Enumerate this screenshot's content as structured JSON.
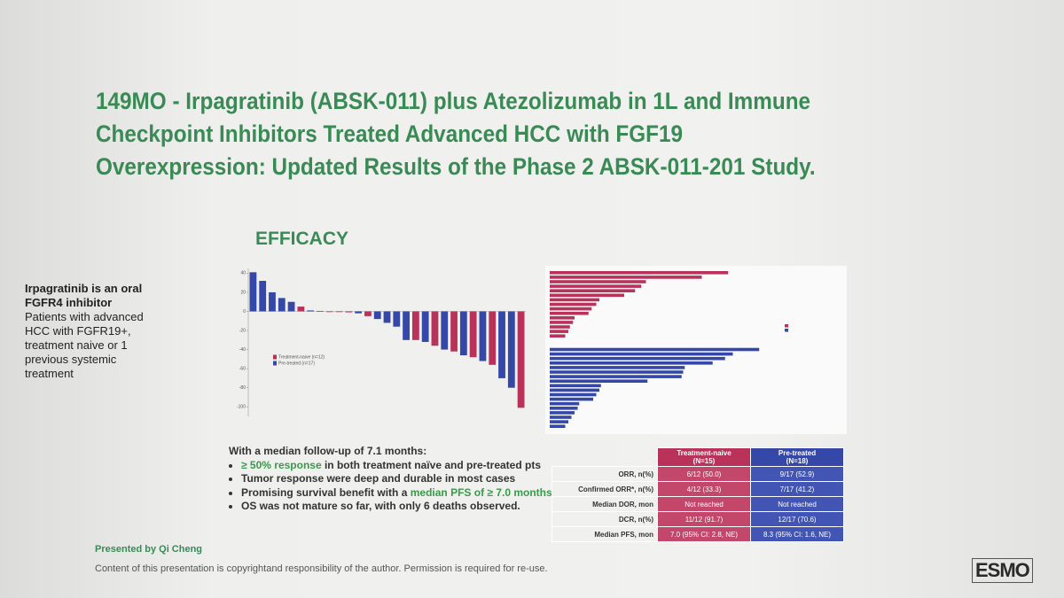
{
  "slide": {
    "title": "149MO - Irpagratinib (ABSK-011) plus Atezolizumab in 1L and Immune Checkpoint Inhibitors Treated Advanced HCC with FGF19 Overexpression: Updated Results of the Phase 2 ABSK-011-201 Study.",
    "section": "EFFICACY",
    "intro": {
      "heading": "Irpagratinib is an oral FGFR4 inhibitor",
      "text": "Patients with advanced HCC with FGFR19+, treatment naive or 1 previous systemic treatment"
    },
    "summary": {
      "lead": "With a median follow-up of 7.1 months:",
      "bullets": [
        [
          {
            "text": "≥ 50% response",
            "highlight": true
          },
          {
            "text": " in both treatment naïve and pre-treated pts",
            "highlight": false
          }
        ],
        [
          {
            "text": "Tumor response were deep and durable in most cases",
            "highlight": false
          }
        ],
        [
          {
            "text": "Promising survival benefit with a ",
            "highlight": false
          },
          {
            "text": "median PFS of ≥ 7.0 months",
            "highlight": true
          }
        ],
        [
          {
            "text": "OS was not mature so far, with only 6 deaths observed.",
            "highlight": false
          }
        ]
      ]
    },
    "presenter": "Presented by Qi Cheng",
    "copyright": "Content of this presentation is copyrightand responsibility of the author. Permission is required for re-use.",
    "logo": "ESMO"
  },
  "table": {
    "column_headers": [
      {
        "name": "Treatment-naive",
        "n": "(N=15)"
      },
      {
        "name": "Pre-treated",
        "n": "(N=18)"
      }
    ],
    "rows": [
      [
        "ORR, n(%)",
        "6/12 (50.0)",
        "9/17 (52.9)"
      ],
      [
        "Confirmed ORR*, n(%)",
        "4/12 (33.3)",
        "7/17 (41.2)"
      ],
      [
        "Median DOR, mon",
        "Not reached",
        "Not reached"
      ],
      [
        "DCR, n(%)",
        "11/12 (91.7)",
        "12/17 (70.6)"
      ],
      [
        "Median PFS, mon",
        "7.0 (95% CI: 2.8, NE)",
        "8.3 (95% CI: 1.6, NE)"
      ]
    ]
  },
  "chart_data": [
    {
      "type": "waterfall",
      "ylim": [
        -110,
        45
      ],
      "yticks": [
        40,
        20,
        0,
        -20,
        -40,
        -60,
        -80,
        -100
      ],
      "series": [
        {
          "name": "Treatment-naive (n=12)",
          "color": "#b8325a",
          "values": [
            null,
            null,
            null,
            null,
            null,
            5,
            null,
            0.5,
            0,
            0,
            -1,
            null,
            -5,
            null,
            null,
            null,
            null,
            -30,
            null,
            -36,
            null,
            -42,
            null,
            -48,
            null,
            -56,
            null,
            null,
            -101
          ]
        },
        {
          "name": "Pre-treated (n=17)",
          "color": "#3548a8",
          "values": [
            41,
            32,
            20,
            14,
            10,
            null,
            1,
            null,
            null,
            null,
            null,
            -2,
            null,
            -8,
            -12,
            -16,
            -30,
            null,
            -32,
            null,
            -40,
            null,
            -46,
            null,
            -52,
            null,
            -70,
            -80,
            null
          ]
        }
      ]
    },
    {
      "type": "swimmer",
      "xlim": [
        0,
        14
      ],
      "series": [
        {
          "color": "#b8325a",
          "values": [
            11.5,
            9.8,
            6.2,
            5.9,
            5.5,
            4.8,
            3.2,
            3.0,
            2.7,
            2.5,
            1.6,
            1.5,
            1.3,
            1.2,
            1.0
          ]
        },
        {
          "color": "#3548a8",
          "values": [
            13.5,
            11.8,
            11.3,
            10.5,
            8.7,
            8.6,
            8.5,
            6.3,
            3.3,
            3.2,
            3.0,
            2.8,
            1.9,
            1.8,
            1.6,
            1.4,
            1.2,
            1.0
          ]
        }
      ]
    }
  ]
}
